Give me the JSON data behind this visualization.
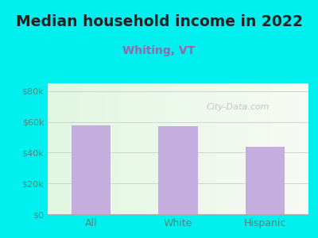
{
  "title": "Median household income in 2022",
  "subtitle": "Whiting, VT",
  "categories": [
    "All",
    "White",
    "Hispanic"
  ],
  "values": [
    57500,
    57000,
    44000
  ],
  "bar_color": "#c4aedd",
  "title_fontsize": 13.5,
  "title_color": "#222222",
  "subtitle_fontsize": 10,
  "subtitle_color": "#9966aa",
  "tick_label_color": "#4a8a7a",
  "ytick_labels": [
    "$0",
    "$20k",
    "$40k",
    "$60k",
    "$80k"
  ],
  "ytick_values": [
    0,
    20000,
    40000,
    60000,
    80000
  ],
  "ylim": [
    0,
    85000
  ],
  "bg_outer": "#00f0f0",
  "watermark": "City-Data.com",
  "bar_width": 0.45,
  "grid_color": "#cccccc"
}
